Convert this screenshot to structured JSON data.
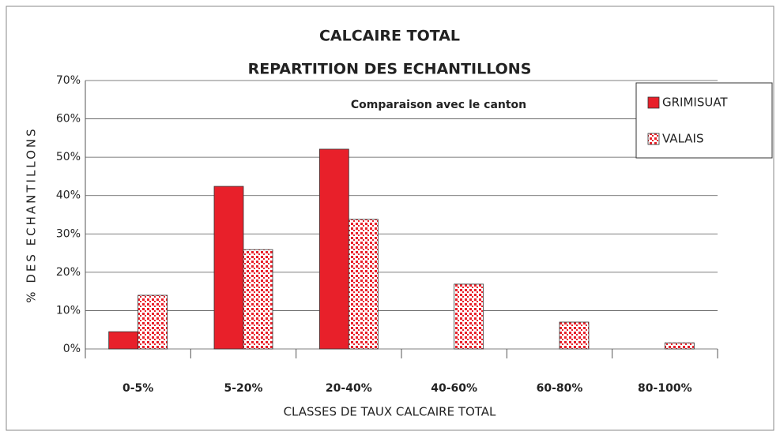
{
  "chart_data": {
    "type": "bar",
    "title": "CALCAIRE TOTAL",
    "subtitle": "REPARTITION DES ECHANTILLONS",
    "annotation": "Comparaison avec le canton",
    "xlabel": "CLASSES  DE TAUX CALCAIRE TOTAL",
    "ylabel": "% DES ECHANTILLONS",
    "categories": [
      "0-5%",
      "5-20%",
      "20-40%",
      "40-60%",
      "60-80%",
      "80-100%"
    ],
    "series": [
      {
        "name": "GRIMISUAT",
        "color": "#e8202a",
        "values": [
          4.5,
          42.4,
          52.1,
          0,
          0,
          0
        ]
      },
      {
        "name": "VALAIS",
        "color": "#e8202a",
        "pattern": "dots",
        "values": [
          14.0,
          25.9,
          33.8,
          16.9,
          7.0,
          1.6
        ]
      }
    ],
    "ylim": [
      0,
      70
    ],
    "yticks": [
      {
        "value": 0,
        "label": "0%"
      },
      {
        "value": 10,
        "label": "10%"
      },
      {
        "value": 20,
        "label": "20%"
      },
      {
        "value": 30,
        "label": "30%"
      },
      {
        "value": 40,
        "label": "40%"
      },
      {
        "value": 50,
        "label": "50%"
      },
      {
        "value": 60,
        "label": "60%"
      },
      {
        "value": 70,
        "label": "70%"
      }
    ],
    "grid": true,
    "legend": "top-right"
  }
}
